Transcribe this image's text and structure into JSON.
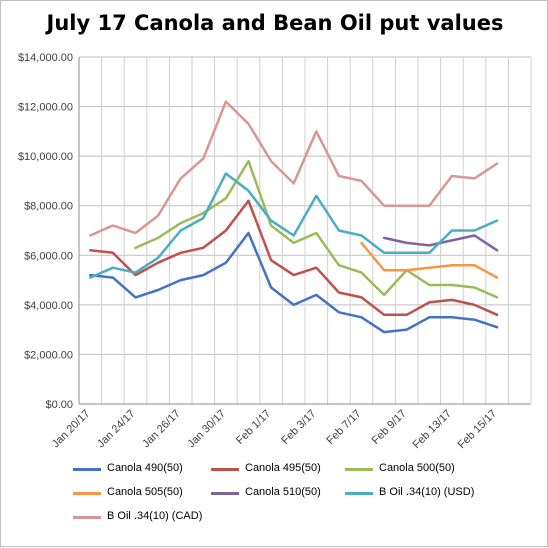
{
  "chart_data": {
    "type": "line",
    "title": "July 17 Canola and Bean Oil put values",
    "xlabel": "",
    "ylabel": "",
    "ylim": [
      0,
      14000
    ],
    "y_ticks": [
      "$0.00",
      "$2,000.00",
      "$4,000.00",
      "$6,000.00",
      "$8,000.00",
      "$10,000.00",
      "$12,000.00",
      "$14,000.00"
    ],
    "x_tick_labels": [
      "Jan 20/17",
      "Jan 24/17",
      "Jan 26/17",
      "Jan 30/17",
      "Feb 1/17",
      "Feb 3/17",
      "Feb 7/17",
      "Feb 9/17",
      "Feb 13/17",
      "Feb 15/17"
    ],
    "grid": true,
    "legend_position": "bottom",
    "categories": [
      "Jan 20/17",
      "Jan 23/17",
      "Jan 24/17",
      "Jan 25/17",
      "Jan 26/17",
      "Jan 27/17",
      "Jan 30/17",
      "Jan 31/17",
      "Feb 1/17",
      "Feb 2/17",
      "Feb 3/17",
      "Feb 6/17",
      "Feb 7/17",
      "Feb 8/17",
      "Feb 9/17",
      "Feb 10/17",
      "Feb 13/17",
      "Feb 14/17",
      "Feb 15/17",
      "Feb 16/17"
    ],
    "series": [
      {
        "name": "Canola 490(50)",
        "color": "#4472c4",
        "values": [
          5200,
          5100,
          4300,
          4600,
          5000,
          5200,
          5700,
          6900,
          4700,
          4000,
          4400,
          3700,
          3500,
          2900,
          3000,
          3500,
          3500,
          3400,
          3100,
          null
        ]
      },
      {
        "name": "Canola 495(50)",
        "color": "#c0504d",
        "values": [
          6200,
          6100,
          5200,
          5700,
          6100,
          6300,
          7000,
          8200,
          5800,
          5200,
          5500,
          4500,
          4300,
          3600,
          3600,
          4100,
          4200,
          4000,
          3600,
          null
        ]
      },
      {
        "name": "Canola 500(50)",
        "color": "#9bbb59",
        "values": [
          null,
          null,
          6300,
          6700,
          7300,
          7700,
          8300,
          9800,
          7200,
          6500,
          6900,
          5600,
          5300,
          4400,
          5400,
          4800,
          4800,
          4700,
          4300,
          null
        ]
      },
      {
        "name": "Canola 505(50)",
        "color": "#f79646",
        "values": [
          null,
          null,
          null,
          null,
          null,
          null,
          null,
          null,
          null,
          null,
          null,
          null,
          6500,
          5400,
          5400,
          5500,
          5600,
          5600,
          5100,
          null
        ]
      },
      {
        "name": "Canola 510(50)",
        "color": "#8064a2",
        "values": [
          null,
          null,
          null,
          null,
          null,
          null,
          null,
          null,
          null,
          null,
          null,
          null,
          null,
          6700,
          6500,
          6400,
          6600,
          6800,
          6200,
          null
        ]
      },
      {
        "name": "B Oil .34(10) (USD)",
        "color": "#4bacc6",
        "values": [
          5100,
          5500,
          5300,
          5900,
          7000,
          7500,
          9300,
          8600,
          7400,
          6800,
          8400,
          7000,
          6800,
          6100,
          6100,
          6100,
          7000,
          7000,
          7400,
          null
        ]
      },
      {
        "name": "B Oil .34(10) (CAD)",
        "color": "#d99694",
        "values": [
          6800,
          7200,
          6900,
          7600,
          9100,
          9900,
          12200,
          11300,
          9800,
          8900,
          11000,
          9200,
          9000,
          8000,
          8000,
          8000,
          9200,
          9100,
          9700,
          null
        ]
      }
    ]
  }
}
